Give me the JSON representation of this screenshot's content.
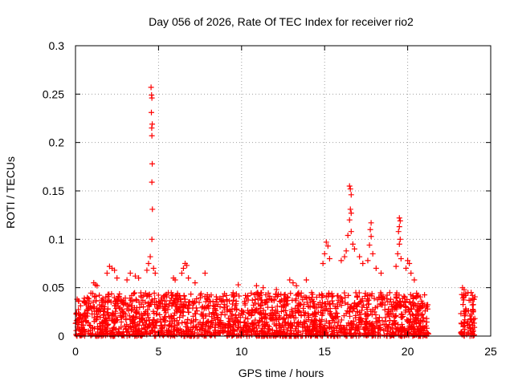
{
  "chart_data": {
    "type": "scatter",
    "title": "Day 056 of 2026, Rate Of TEC Index for receiver rio2",
    "xlabel": "GPS time / hours",
    "ylabel": "ROTI / TECUs",
    "xlim": [
      0,
      25
    ],
    "ylim": [
      0,
      0.3
    ],
    "xticks": [
      "0",
      "5",
      "10",
      "15",
      "20",
      "25"
    ],
    "yticks": [
      "0",
      "0.05",
      "0.1",
      "0.15",
      "0.2",
      "0.25",
      "0.3"
    ],
    "grid": true,
    "marker": "+",
    "series": [
      {
        "color": "#ff0000",
        "points": [
          [
            4.55,
            0.257
          ],
          [
            4.58,
            0.249
          ],
          [
            4.6,
            0.246
          ],
          [
            4.57,
            0.231
          ],
          [
            4.62,
            0.219
          ],
          [
            4.59,
            0.215
          ],
          [
            4.6,
            0.207
          ],
          [
            4.62,
            0.178
          ],
          [
            4.6,
            0.159
          ],
          [
            4.63,
            0.131
          ],
          [
            4.6,
            0.1
          ],
          [
            4.5,
            0.082
          ],
          [
            4.4,
            0.075
          ],
          [
            4.7,
            0.07
          ],
          [
            4.3,
            0.068
          ],
          [
            4.8,
            0.065
          ],
          [
            16.5,
            0.155
          ],
          [
            16.55,
            0.152
          ],
          [
            16.6,
            0.146
          ],
          [
            16.55,
            0.131
          ],
          [
            16.6,
            0.127
          ],
          [
            16.5,
            0.12
          ],
          [
            16.6,
            0.108
          ],
          [
            16.4,
            0.104
          ],
          [
            16.7,
            0.095
          ],
          [
            16.8,
            0.09
          ],
          [
            16.3,
            0.088
          ],
          [
            17.8,
            0.117
          ],
          [
            17.75,
            0.11
          ],
          [
            17.8,
            0.103
          ],
          [
            17.7,
            0.094
          ],
          [
            17.9,
            0.085
          ],
          [
            17.6,
            0.078
          ],
          [
            19.5,
            0.122
          ],
          [
            19.55,
            0.119
          ],
          [
            19.5,
            0.113
          ],
          [
            19.45,
            0.108
          ],
          [
            19.55,
            0.1
          ],
          [
            19.5,
            0.095
          ],
          [
            19.4,
            0.085
          ],
          [
            19.6,
            0.08
          ],
          [
            19.3,
            0.072
          ],
          [
            15.1,
            0.097
          ],
          [
            15.2,
            0.093
          ],
          [
            15.0,
            0.085
          ],
          [
            15.3,
            0.08
          ],
          [
            14.9,
            0.075
          ],
          [
            16.2,
            0.082
          ],
          [
            16.0,
            0.078
          ],
          [
            17.1,
            0.082
          ],
          [
            17.3,
            0.075
          ],
          [
            18.1,
            0.07
          ],
          [
            18.4,
            0.065
          ],
          [
            20.0,
            0.078
          ],
          [
            20.1,
            0.075
          ],
          [
            19.9,
            0.07
          ],
          [
            20.2,
            0.065
          ],
          [
            20.4,
            0.058
          ],
          [
            6.6,
            0.075
          ],
          [
            6.7,
            0.073
          ],
          [
            6.5,
            0.07
          ],
          [
            6.4,
            0.065
          ],
          [
            6.8,
            0.06
          ],
          [
            2.05,
            0.072
          ],
          [
            2.2,
            0.07
          ],
          [
            2.35,
            0.068
          ],
          [
            1.9,
            0.065
          ],
          [
            2.5,
            0.06
          ],
          [
            3.3,
            0.065
          ],
          [
            3.6,
            0.062
          ],
          [
            3.8,
            0.06
          ],
          [
            3.1,
            0.058
          ],
          [
            7.8,
            0.065
          ],
          [
            5.9,
            0.06
          ],
          [
            6.0,
            0.058
          ],
          [
            7.2,
            0.055
          ],
          [
            12.9,
            0.058
          ],
          [
            13.1,
            0.055
          ],
          [
            13.3,
            0.052
          ],
          [
            13.9,
            0.058
          ],
          [
            9.8,
            0.053
          ],
          [
            10.9,
            0.052
          ],
          [
            11.3,
            0.05
          ],
          [
            12.1,
            0.048
          ],
          [
            1.1,
            0.055
          ],
          [
            1.2,
            0.053
          ],
          [
            1.3,
            0.052
          ],
          [
            0.1,
            0.038
          ],
          [
            0.2,
            0.036
          ],
          [
            23.3,
            0.05
          ],
          [
            23.4,
            0.048
          ],
          [
            23.5,
            0.044
          ],
          [
            23.9,
            0.042
          ],
          [
            24.0,
            0.038
          ],
          [
            21.0,
            0.032
          ],
          [
            21.1,
            0.03
          ],
          [
            21.2,
            0.028
          ],
          [
            20.9,
            0.034
          ]
        ],
        "dense_band": {
          "x_ranges": [
            [
              0,
              21.25
            ],
            [
              23.2,
              24.05
            ]
          ],
          "y_range": [
            0,
            0.045
          ]
        }
      }
    ]
  }
}
